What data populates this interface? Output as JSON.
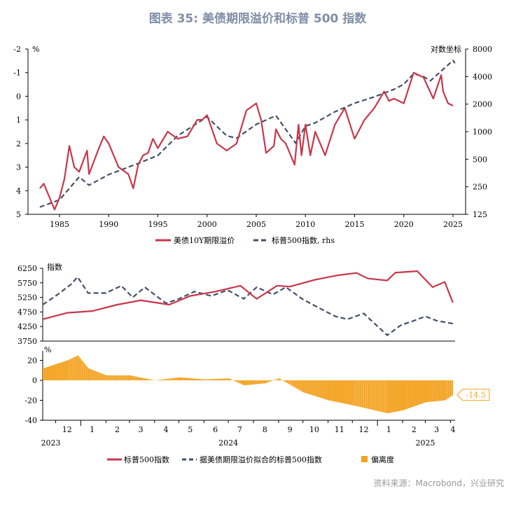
{
  "title": "图表 35: 美债期限溢价和标普 500 指数",
  "source": "资料来源：Macrobond，兴业研究",
  "colors": {
    "red": "#c8374a",
    "navy": "#44506a",
    "orange": "#f3a21f"
  },
  "chart_data": [
    {
      "type": "line",
      "left_unit": "%",
      "right_unit": "对数坐标",
      "y_left": {
        "range": [
          5,
          -2
        ],
        "inverted": true,
        "ticks": [
          "-2",
          "-1",
          "0",
          "1",
          "2",
          "3",
          "4",
          "5"
        ]
      },
      "y_right": {
        "scale": "log",
        "range": [
          125,
          8000
        ],
        "ticks": [
          "125",
          "250",
          "500",
          "1000",
          "2000",
          "4000",
          "8000"
        ]
      },
      "x_ticks": [
        "1985",
        "1990",
        "1995",
        "2000",
        "2005",
        "2010",
        "2015",
        "2020",
        "2025"
      ],
      "legend": [
        "美债10Y期限溢价",
        "标普500指数, rhs"
      ],
      "series": [
        {
          "name": "美债10Y期限溢价",
          "axis": "left",
          "x": [
            1983.0,
            1983.4,
            1984.0,
            1984.5,
            1985.0,
            1985.5,
            1986.0,
            1986.5,
            1987.0,
            1987.8,
            1988.0,
            1989.0,
            1989.5,
            1990.0,
            1990.5,
            1991.0,
            1992.0,
            1992.5,
            1993.0,
            1993.5,
            1994.0,
            1994.5,
            1995.0,
            1996.0,
            1997.0,
            1998.0,
            1999.0,
            1999.5,
            2000.0,
            2000.5,
            2001.0,
            2002.0,
            2003.0,
            2004.0,
            2005.0,
            2005.5,
            2006.0,
            2006.8,
            2007.0,
            2007.5,
            2008.0,
            2008.9,
            2009.3,
            2009.6,
            2010.0,
            2010.5,
            2011.0,
            2012.0,
            2013.0,
            2014.0,
            2015.0,
            2016.0,
            2017.0,
            2018.0,
            2018.5,
            2019.0,
            2020.0,
            2021.0,
            2022.0,
            2023.0,
            2023.8,
            2024.0,
            2024.5,
            2025.0
          ],
          "y": [
            3.9,
            3.7,
            4.3,
            4.8,
            4.3,
            3.5,
            2.1,
            3.0,
            3.2,
            2.3,
            3.3,
            2.2,
            1.7,
            2.0,
            2.5,
            3.0,
            3.3,
            3.9,
            2.9,
            2.5,
            2.4,
            1.8,
            2.2,
            1.5,
            1.8,
            1.7,
            1.0,
            1.0,
            0.8,
            1.4,
            2.0,
            2.3,
            2.0,
            0.6,
            0.3,
            1.0,
            2.4,
            2.1,
            1.4,
            1.8,
            2.0,
            2.9,
            1.2,
            2.5,
            1.2,
            2.5,
            1.5,
            2.5,
            1.2,
            0.5,
            1.8,
            1.0,
            0.5,
            -0.2,
            0.2,
            0.1,
            0.3,
            -1.0,
            -0.8,
            0.1,
            -0.9,
            -0.2,
            0.3,
            0.4
          ]
        },
        {
          "name": "标普500指数, rhs",
          "axis": "right",
          "x": [
            1983.0,
            1985.0,
            1987.0,
            1988.0,
            1990.0,
            1993.0,
            1995.0,
            1997.0,
            2000.0,
            2002.0,
            2003.0,
            2005.0,
            2007.0,
            2009.0,
            2010.0,
            2011.0,
            2013.0,
            2015.0,
            2017.0,
            2019.0,
            2020.0,
            2021.0,
            2022.0,
            2022.7,
            2024.0,
            2025.0,
            2025.2
          ],
          "y": [
            150,
            180,
            320,
            260,
            340,
            450,
            550,
            900,
            1450,
            900,
            850,
            1200,
            1500,
            750,
            1150,
            1250,
            1650,
            2050,
            2400,
            2900,
            3300,
            4300,
            4000,
            3600,
            4800,
            6000,
            5600
          ]
        }
      ]
    },
    {
      "type": "line",
      "left_unit": "指数",
      "y_left": {
        "range": [
          3750,
          6250
        ],
        "ticks": [
          "3750",
          "4250",
          "4750",
          "5250",
          "5750",
          "6250"
        ]
      },
      "legend": [
        "标普500指数",
        "据美债期限溢价拟合的标普500指数"
      ],
      "series": [
        {
          "name": "标普500指数",
          "x": [
            "2023-11-15",
            "2023-12-15",
            "2024-01-15",
            "2024-02-15",
            "2024-03-15",
            "2024-04-19",
            "2024-05-15",
            "2024-06-15",
            "2024-07-16",
            "2024-08-05",
            "2024-08-30",
            "2024-09-15",
            "2024-10-15",
            "2024-11-11",
            "2024-12-06",
            "2024-12-20",
            "2025-01-13",
            "2025-01-23",
            "2025-02-19",
            "2025-03-10",
            "2025-03-25",
            "2025-04-04"
          ],
          "y": [
            4500,
            4720,
            4780,
            5000,
            5150,
            5000,
            5300,
            5450,
            5650,
            5200,
            5650,
            5620,
            5850,
            6000,
            6090,
            5900,
            5830,
            6100,
            6150,
            5600,
            5780,
            5070
          ]
        },
        {
          "name": "据美债期限溢价拟合的标普500指数",
          "x": [
            "2023-11-15",
            "2023-12-01",
            "2023-12-20",
            "2023-12-28",
            "2024-01-10",
            "2024-02-01",
            "2024-02-20",
            "2024-03-05",
            "2024-03-20",
            "2024-04-15",
            "2024-05-01",
            "2024-05-20",
            "2024-06-10",
            "2024-06-30",
            "2024-07-20",
            "2024-08-05",
            "2024-08-25",
            "2024-09-10",
            "2024-09-30",
            "2024-10-20",
            "2024-11-10",
            "2024-11-25",
            "2024-12-15",
            "2025-01-13",
            "2025-01-30",
            "2025-02-15",
            "2025-03-01",
            "2025-03-15",
            "2025-04-04"
          ],
          "y": [
            5000,
            5300,
            5700,
            5950,
            5400,
            5400,
            5650,
            5250,
            5600,
            5050,
            5200,
            5450,
            5300,
            5500,
            5200,
            5600,
            5350,
            5600,
            5200,
            4900,
            4600,
            4500,
            4700,
            3950,
            4300,
            4450,
            4600,
            4450,
            4350
          ]
        }
      ]
    },
    {
      "type": "bar",
      "left_unit": "%",
      "y_left": {
        "range": [
          -40,
          25
        ],
        "ticks": [
          "-40",
          "-20",
          "0",
          "20"
        ]
      },
      "legend": [
        "偏离度"
      ],
      "annotation": "-14.5",
      "series": [
        {
          "name": "偏离度",
          "x": [
            "2023-11-15",
            "2023-12-15",
            "2023-12-28",
            "2024-01-10",
            "2024-02-01",
            "2024-03-01",
            "2024-04-01",
            "2024-05-01",
            "2024-06-01",
            "2024-07-01",
            "2024-07-20",
            "2024-08-15",
            "2024-09-01",
            "2024-10-01",
            "2024-11-01",
            "2024-12-01",
            "2025-01-13",
            "2025-02-01",
            "2025-03-01",
            "2025-03-25",
            "2025-04-04"
          ],
          "y": [
            12,
            20,
            25,
            12,
            5,
            5,
            0,
            3,
            1,
            2,
            -5,
            -3,
            2,
            -12,
            -20,
            -25,
            -33,
            -30,
            -22,
            -20,
            -14.5
          ]
        }
      ],
      "x_month_ticks": [
        "12",
        "1",
        "2",
        "3",
        "4",
        "5",
        "6",
        "7",
        "8",
        "9",
        "10",
        "11",
        "12",
        "1",
        "2",
        "3",
        "4"
      ],
      "x_year_ticks": [
        "2023",
        "2024",
        "2025"
      ]
    }
  ]
}
